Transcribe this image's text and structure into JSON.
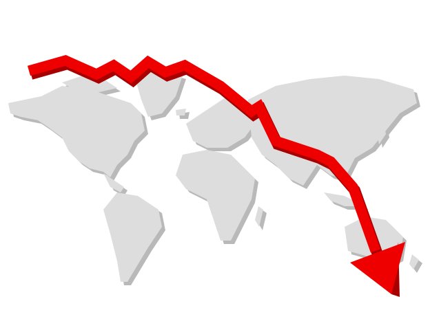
{
  "illustration": {
    "subject": "world-map-with-declining-arrow",
    "colors": {
      "land": "#dddddd",
      "land_shadow": "#b9b9b9",
      "arrow": "#ee0000",
      "arrow_shadow": "#a80000",
      "background": "#ffffff"
    },
    "icons": [
      "world-map-icon",
      "down-trend-arrow-icon"
    ]
  }
}
